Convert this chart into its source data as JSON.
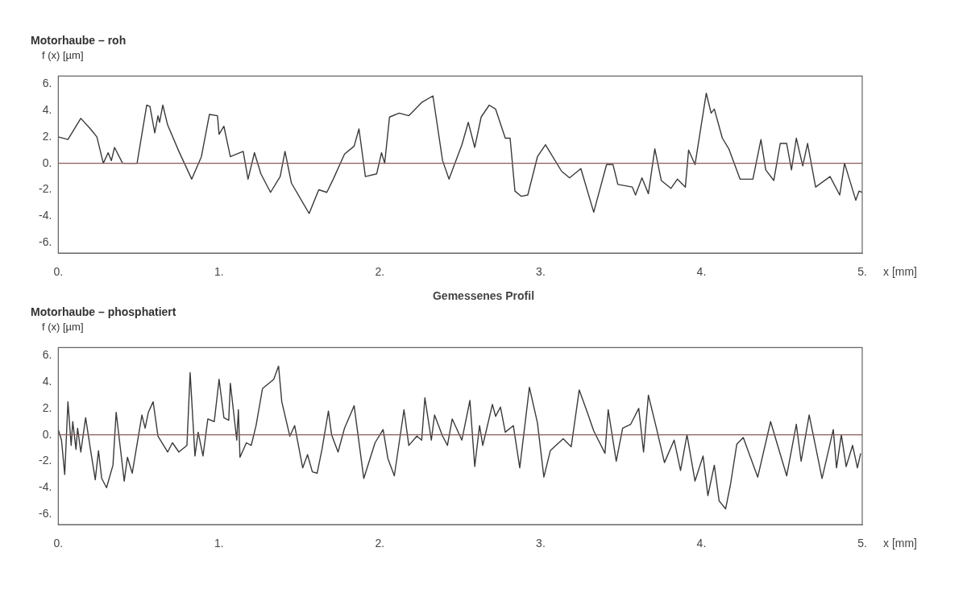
{
  "chart_data": [
    {
      "type": "line",
      "title": "Motorhaube – roh",
      "ylabel": "f (x) [µm]",
      "xlabel": "x [mm]",
      "annotations": [
        "Gemessenes Profil"
      ],
      "xlim": [
        0,
        5
      ],
      "ylim": [
        -6.8,
        6.6
      ],
      "xticks": [
        {
          "value": 0,
          "label": "0."
        },
        {
          "value": 1,
          "label": "1."
        },
        {
          "value": 2,
          "label": "2."
        },
        {
          "value": 3,
          "label": "3."
        },
        {
          "value": 4,
          "label": "4."
        },
        {
          "value": 5,
          "label": "5."
        }
      ],
      "yticks": [
        {
          "value": 6,
          "label": "6."
        },
        {
          "value": 4,
          "label": "4."
        },
        {
          "value": 2,
          "label": "2."
        },
        {
          "value": 0,
          "label": "0."
        },
        {
          "value": -2,
          "label": "-2."
        },
        {
          "value": -4,
          "label": "-4."
        },
        {
          "value": -6,
          "label": "-6."
        }
      ],
      "ref_lines": [
        {
          "axis": "y",
          "value": 0,
          "color": "#8a5a5a"
        }
      ],
      "grid": false,
      "legend": false,
      "marker": "none",
      "series": [
        {
          "color": "#3a3a3a",
          "x": [
            0,
            0.06,
            0.14,
            0.2,
            0.24,
            0.28,
            0.31,
            0.33,
            0.35,
            0.4,
            0.49,
            0.55,
            0.57,
            0.6,
            0.62,
            0.63,
            0.65,
            0.68,
            0.75,
            0.83,
            0.89,
            0.94,
            0.99,
            1.0,
            1.03,
            1.07,
            1.15,
            1.18,
            1.22,
            1.26,
            1.32,
            1.38,
            1.41,
            1.45,
            1.56,
            1.62,
            1.67,
            1.71,
            1.78,
            1.84,
            1.87,
            1.91,
            1.98,
            2.01,
            2.03,
            2.06,
            2.12,
            2.18,
            2.26,
            2.33,
            2.39,
            2.43,
            2.51,
            2.55,
            2.59,
            2.63,
            2.68,
            2.72,
            2.78,
            2.81,
            2.84,
            2.88,
            2.92,
            2.98,
            3.03,
            3.13,
            3.18,
            3.25,
            3.33,
            3.41,
            3.45,
            3.48,
            3.57,
            3.59,
            3.63,
            3.67,
            3.71,
            3.75,
            3.81,
            3.85,
            3.9,
            3.92,
            3.96,
            4.03,
            4.06,
            4.08,
            4.13,
            4.17,
            4.24,
            4.32,
            4.37,
            4.4,
            4.45,
            4.49,
            4.53,
            4.56,
            4.59,
            4.63,
            4.66,
            4.71,
            4.8,
            4.86,
            4.89,
            4.96,
            4.98,
            5.0
          ],
          "values": [
            2.0,
            1.8,
            3.4,
            2.6,
            2.0,
            0,
            0.8,
            0.2,
            1.2,
            0,
            0,
            4.4,
            4.3,
            2.3,
            3.6,
            3.1,
            4.4,
            2.9,
            0.9,
            -1.2,
            0.5,
            3.7,
            3.6,
            2.2,
            2.8,
            0.5,
            0.9,
            -1.2,
            0.8,
            -0.8,
            -2.2,
            -1.0,
            0.9,
            -1.5,
            -3.8,
            -2.0,
            -2.2,
            -1.2,
            0.7,
            1.3,
            2.6,
            -1.0,
            -0.8,
            0.8,
            0,
            3.5,
            3.8,
            3.6,
            4.6,
            5.1,
            0.2,
            -1.2,
            1.4,
            3.1,
            1.2,
            3.5,
            4.4,
            4.1,
            1.9,
            1.9,
            -2.1,
            -2.5,
            -2.4,
            0.5,
            1.4,
            -0.6,
            -1.1,
            -0.4,
            -3.7,
            -0.1,
            -0.1,
            -1.6,
            -1.8,
            -2.4,
            -1.1,
            -2.3,
            1.1,
            -1.3,
            -1.9,
            -1.2,
            -1.8,
            1.0,
            -0.1,
            5.3,
            3.8,
            4.1,
            1.9,
            1.1,
            -1.2,
            -1.2,
            1.8,
            -0.5,
            -1.3,
            1.5,
            1.5,
            -0.5,
            1.9,
            -0.2,
            1.5,
            -1.8,
            -1.0,
            -2.4,
            0,
            -2.8,
            -2.1,
            -2.2
          ]
        }
      ]
    },
    {
      "type": "line",
      "title": "Motorhaube – phosphatiert",
      "ylabel": "f (x) [µm]",
      "xlabel": "x [mm]",
      "xlim": [
        0,
        5
      ],
      "ylim": [
        -6.8,
        6.6
      ],
      "xticks": [
        {
          "value": 0,
          "label": "0."
        },
        {
          "value": 1,
          "label": "1."
        },
        {
          "value": 2,
          "label": "2."
        },
        {
          "value": 3,
          "label": "3."
        },
        {
          "value": 4,
          "label": "4."
        },
        {
          "value": 5,
          "label": "5."
        }
      ],
      "yticks": [
        {
          "value": 6,
          "label": "6."
        },
        {
          "value": 4,
          "label": "4."
        },
        {
          "value": 2,
          "label": "2."
        },
        {
          "value": 0,
          "label": "0."
        },
        {
          "value": -2,
          "label": "-2."
        },
        {
          "value": -4,
          "label": "-4."
        },
        {
          "value": -6,
          "label": "-6."
        }
      ],
      "ref_lines": [
        {
          "axis": "y",
          "value": 0,
          "color": "#8a5a5a"
        }
      ],
      "grid": false,
      "legend": false,
      "marker": "none",
      "series": [
        {
          "color": "#3a3a3a",
          "x": [
            0,
            0.02,
            0.04,
            0.06,
            0.08,
            0.09,
            0.11,
            0.12,
            0.14,
            0.17,
            0.2,
            0.23,
            0.25,
            0.27,
            0.3,
            0.34,
            0.36,
            0.41,
            0.43,
            0.46,
            0.52,
            0.54,
            0.56,
            0.59,
            0.62,
            0.68,
            0.71,
            0.75,
            0.8,
            0.82,
            0.85,
            0.87,
            0.9,
            0.93,
            0.97,
            1.0,
            1.03,
            1.06,
            1.07,
            1.11,
            1.12,
            1.13,
            1.17,
            1.2,
            1.23,
            1.27,
            1.31,
            1.34,
            1.37,
            1.39,
            1.44,
            1.47,
            1.52,
            1.55,
            1.58,
            1.61,
            1.64,
            1.68,
            1.7,
            1.74,
            1.78,
            1.84,
            1.9,
            1.97,
            2.02,
            2.05,
            2.09,
            2.15,
            2.18,
            2.23,
            2.26,
            2.28,
            2.32,
            2.34,
            2.39,
            2.42,
            2.45,
            2.51,
            2.56,
            2.59,
            2.62,
            2.64,
            2.7,
            2.72,
            2.75,
            2.78,
            2.83,
            2.87,
            2.93,
            2.98,
            3.02,
            3.06,
            3.14,
            3.19,
            3.24,
            3.29,
            3.33,
            3.4,
            3.42,
            3.47,
            3.51,
            3.56,
            3.61,
            3.64,
            3.67,
            3.72,
            3.77,
            3.83,
            3.87,
            3.91,
            3.96,
            4.01,
            4.04,
            4.08,
            4.11,
            4.15,
            4.18,
            4.22,
            4.26,
            4.35,
            4.43,
            4.53,
            4.59,
            4.62,
            4.67,
            4.75,
            4.82,
            4.84,
            4.87,
            4.9,
            4.94,
            4.97,
            4.99
          ],
          "values": [
            0.4,
            -0.4,
            -3.0,
            2.5,
            -0.8,
            1.0,
            -1.1,
            0.5,
            -1.3,
            1.3,
            -1.1,
            -3.4,
            -1.2,
            -3.3,
            -4.0,
            -2.3,
            1.7,
            -3.5,
            -1.7,
            -2.9,
            1.5,
            0.5,
            1.7,
            2.5,
            -0.1,
            -1.3,
            -0.6,
            -1.3,
            -0.8,
            4.7,
            -1.6,
            0.2,
            -1.6,
            1.2,
            1.0,
            4.2,
            1.3,
            1.1,
            3.9,
            -0.4,
            1.9,
            -1.7,
            -0.6,
            -0.8,
            0.7,
            3.5,
            3.9,
            4.2,
            5.2,
            2.5,
            -0.1,
            0.7,
            -2.5,
            -1.5,
            -2.8,
            -2.9,
            -1.1,
            1.8,
            0,
            -1.3,
            0.5,
            2.2,
            -3.3,
            -0.6,
            0.4,
            -1.8,
            -3.1,
            1.9,
            -0.8,
            -0.1,
            -0.4,
            2.8,
            -0.4,
            1.5,
            -0.1,
            -0.8,
            1.2,
            -0.4,
            2.6,
            -2.4,
            0.7,
            -0.8,
            2.3,
            1.4,
            2.1,
            0.2,
            0.7,
            -2.5,
            3.6,
            0.9,
            -3.2,
            -1.2,
            -0.3,
            -0.9,
            3.4,
            1.7,
            0.3,
            -1.4,
            1.9,
            -2.0,
            0.5,
            0.8,
            2.0,
            -1.3,
            3.0,
            0.5,
            -2.1,
            -0.4,
            -2.7,
            0,
            -3.5,
            -1.6,
            -4.6,
            -2.3,
            -5.0,
            -5.6,
            -3.8,
            -0.7,
            -0.2,
            -3.2,
            1.0,
            -3.1,
            0.8,
            -2.0,
            1.5,
            -3.3,
            0.4,
            -2.5,
            0,
            -2.4,
            -0.8,
            -2.5,
            -1.4
          ]
        }
      ]
    }
  ]
}
